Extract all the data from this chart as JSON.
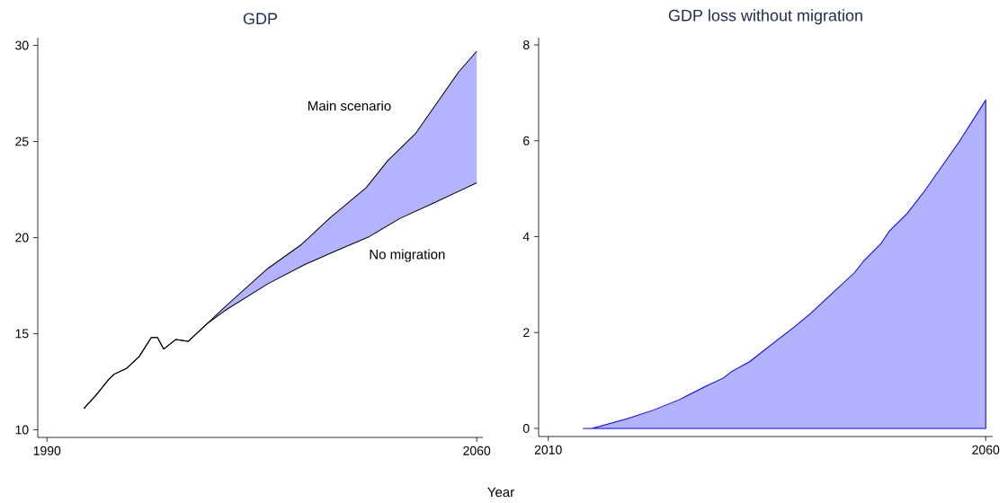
{
  "chart_data": [
    {
      "type": "line",
      "title": "GDP",
      "xlim": [
        1988.5,
        2061
      ],
      "ylim": [
        9.6,
        30.4
      ],
      "xticks": [
        1990,
        2060
      ],
      "yticks": [
        10,
        15,
        20,
        25,
        30
      ],
      "series": [
        {
          "name": "Main scenario",
          "color": "#000000",
          "x": [
            1996,
            1998,
            2000,
            2001,
            2003,
            2005,
            2007,
            2008,
            2009,
            2011,
            2013,
            2016,
            2019,
            2026,
            2031.5,
            2036,
            2042,
            2045.5,
            2050,
            2053.5,
            2057,
            2060
          ],
          "values": [
            11.1,
            11.8,
            12.6,
            12.9,
            13.2,
            13.8,
            14.8,
            14.8,
            14.2,
            14.7,
            14.6,
            15.5,
            16.4,
            18.4,
            19.65,
            21.0,
            22.6,
            24.0,
            25.4,
            27.0,
            28.6,
            29.7
          ]
        },
        {
          "name": "No migration",
          "color": "#000000",
          "x": [
            1996,
            1998,
            2000,
            2001,
            2003,
            2005,
            2007,
            2008,
            2009,
            2011,
            2013,
            2016,
            2019,
            2026,
            2032,
            2037,
            2042.5,
            2047.5,
            2053,
            2060
          ],
          "values": [
            11.1,
            11.8,
            12.6,
            12.9,
            13.2,
            13.8,
            14.8,
            14.8,
            14.2,
            14.7,
            14.6,
            15.5,
            16.2,
            17.6,
            18.6,
            19.3,
            20.05,
            21.0,
            21.8,
            22.85
          ]
        }
      ]
    },
    {
      "type": "area",
      "title": "GDP loss without migration",
      "xlabel": "Year",
      "xlim": [
        2008.9,
        2060.8
      ],
      "ylim": [
        -0.17,
        8.15
      ],
      "xticks": [
        2010,
        2060
      ],
      "yticks": [
        0,
        2,
        4,
        6,
        8
      ],
      "series": [
        {
          "color": "#0000ff",
          "x": [
            2014,
            2015,
            2019,
            2022,
            2025,
            2028,
            2030,
            2031,
            2033,
            2036,
            2038,
            2040,
            2042,
            2045,
            2046,
            2048,
            2049,
            2051,
            2053,
            2057,
            2060
          ],
          "values": [
            0,
            0,
            0.2,
            0.38,
            0.6,
            0.88,
            1.05,
            1.19,
            1.39,
            1.82,
            2.1,
            2.4,
            2.74,
            3.25,
            3.48,
            3.85,
            4.12,
            4.48,
            4.95,
            5.99,
            6.85
          ]
        }
      ]
    }
  ]
}
